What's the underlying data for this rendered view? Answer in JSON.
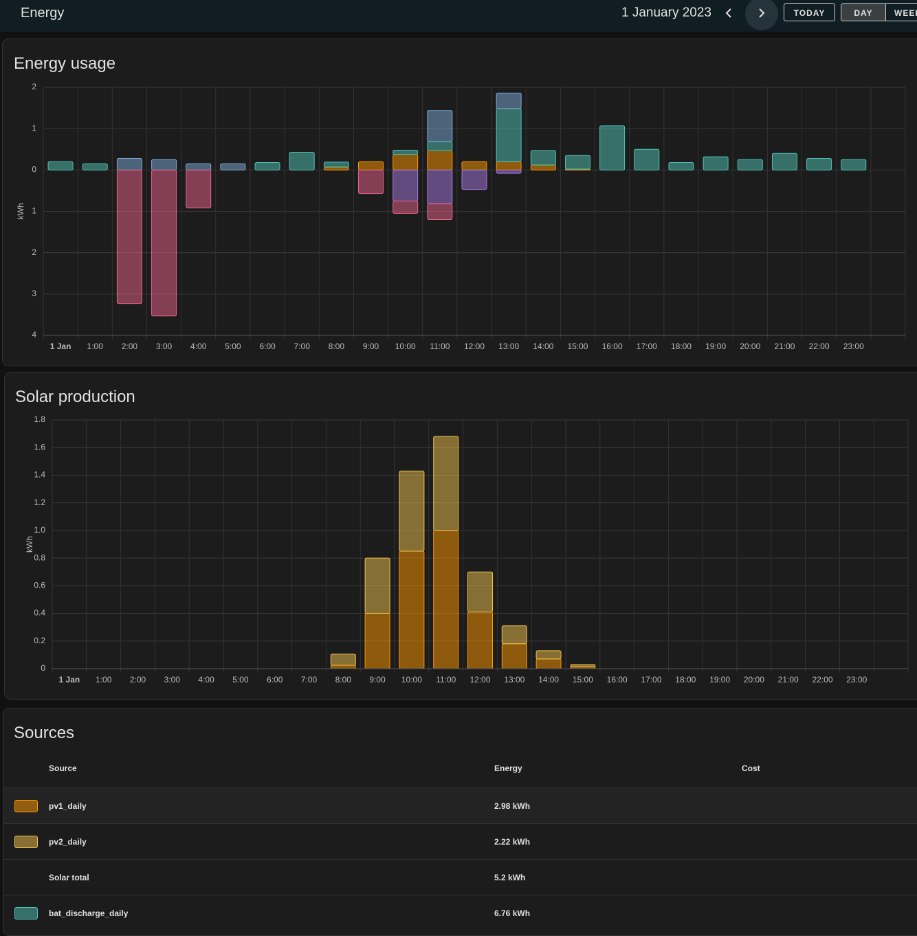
{
  "header": {
    "title": "Energy",
    "date": "1 January 2023",
    "buttons": [
      "TODAY",
      "DAY",
      "WEEK"
    ]
  },
  "chart_data": [
    {
      "type": "bar",
      "title": "Energy usage",
      "y_label": "kWh",
      "categories": [
        "1 Jan",
        "1:00",
        "2:00",
        "3:00",
        "4:00",
        "5:00",
        "6:00",
        "7:00",
        "8:00",
        "9:00",
        "10:00",
        "11:00",
        "12:00",
        "13:00",
        "14:00",
        "15:00",
        "16:00",
        "17:00",
        "18:00",
        "19:00",
        "20:00",
        "21:00",
        "22:00",
        "23:00"
      ],
      "ylim": [
        -4,
        2
      ],
      "yticks": [
        {
          "value": -4,
          "label": "4"
        },
        {
          "value": -3,
          "label": "3"
        },
        {
          "value": -2,
          "label": "2"
        },
        {
          "value": -1,
          "label": "1"
        },
        0,
        1,
        2
      ],
      "grid": true,
      "series": [
        {
          "color": "#ff9800",
          "values": [
            0,
            0,
            0,
            0,
            0,
            0,
            0,
            0,
            0.07,
            0.2,
            0.38,
            0.47,
            0.2,
            0.2,
            0.12,
            0.02,
            0,
            0,
            0,
            0,
            0,
            0,
            0,
            0
          ]
        },
        {
          "color": "#4fc3b5",
          "values": [
            0.2,
            0.15,
            0,
            0,
            0,
            0,
            0.18,
            0.43,
            0.12,
            0,
            0.1,
            0.22,
            0,
            1.28,
            0.35,
            0.33,
            1.07,
            0.5,
            0.18,
            0.32,
            0.25,
            0.4,
            0.28,
            0.25
          ]
        },
        {
          "color": "#7ea9d8",
          "values": [
            0,
            0,
            0.28,
            0.25,
            0.15,
            0.15,
            0,
            0,
            0,
            0,
            0,
            0.75,
            0,
            0.38,
            0,
            0,
            0,
            0,
            0,
            0,
            0,
            0,
            0,
            0
          ]
        },
        {
          "color": "#a77ae0",
          "values": [
            0,
            0,
            0,
            0,
            0,
            0,
            0,
            0,
            0,
            0,
            -0.75,
            -0.82,
            -0.47,
            -0.08,
            0,
            0,
            0,
            0,
            0,
            0,
            0,
            0,
            0,
            0
          ]
        },
        {
          "color": "#e9638b",
          "values": [
            0,
            0,
            -3.23,
            -3.53,
            -0.92,
            0,
            0,
            0,
            0,
            -0.57,
            -0.3,
            -0.38,
            0,
            0,
            0,
            0,
            0,
            0,
            0,
            0,
            0,
            0,
            0,
            0
          ]
        }
      ]
    },
    {
      "type": "bar",
      "title": "Solar production",
      "y_label": "kWh",
      "categories": [
        "1 Jan",
        "1:00",
        "2:00",
        "3:00",
        "4:00",
        "5:00",
        "6:00",
        "7:00",
        "8:00",
        "9:00",
        "10:00",
        "11:00",
        "12:00",
        "13:00",
        "14:00",
        "15:00",
        "16:00",
        "17:00",
        "18:00",
        "19:00",
        "20:00",
        "21:00",
        "22:00",
        "23:00"
      ],
      "ylim": [
        0,
        1.8
      ],
      "yticks": [
        0,
        0.2,
        0.4,
        0.6,
        0.8,
        {
          "value": 1,
          "label": "1.0"
        },
        1.2,
        1.4,
        1.6,
        1.8
      ],
      "grid": true,
      "series": [
        {
          "color": "#ff9800",
          "values": [
            0,
            0,
            0,
            0,
            0,
            0,
            0,
            0,
            0.025,
            0.4,
            0.85,
            1.0,
            0.41,
            0.18,
            0.07,
            0.015,
            0,
            0,
            0,
            0,
            0,
            0,
            0,
            0
          ]
        },
        {
          "color": "#f0c24e",
          "values": [
            0,
            0,
            0,
            0,
            0,
            0,
            0,
            0,
            0.08,
            0.4,
            0.58,
            0.68,
            0.29,
            0.13,
            0.06,
            0.015,
            0,
            0,
            0,
            0,
            0,
            0,
            0,
            0
          ]
        }
      ]
    }
  ],
  "sources": {
    "title": "Sources",
    "columns": [
      "Source",
      "Energy",
      "Cost"
    ],
    "rows": [
      {
        "color": "#ff9800",
        "name": "pv1_daily",
        "energy": "2.98 kWh"
      },
      {
        "color": "#f0c24e",
        "name": "pv2_daily",
        "energy": "2.22 kWh"
      },
      {
        "name": "Solar total",
        "energy": "5.2 kWh"
      },
      {
        "color": "#4fc3b5",
        "name": "bat_discharge_daily",
        "energy": "6.76 kWh"
      }
    ]
  }
}
